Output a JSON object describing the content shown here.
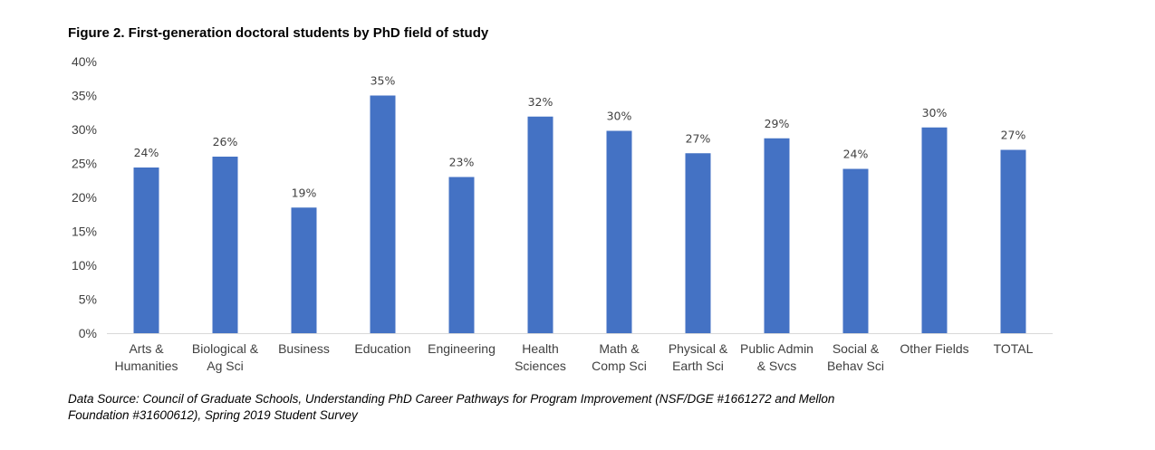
{
  "chart_data": {
    "type": "bar",
    "title": "Figure 2. First-generation doctoral students by PhD field of study",
    "categories": [
      [
        "Arts &",
        "Humanities"
      ],
      [
        "Biological &",
        "Ag Sci"
      ],
      [
        "Business"
      ],
      [
        "Education"
      ],
      [
        "Engineering"
      ],
      [
        "Health",
        "Sciences"
      ],
      [
        "Math &",
        "Comp Sci"
      ],
      [
        "Physical &",
        "Earth Sci"
      ],
      [
        "Public Admin",
        "& Svcs"
      ],
      [
        "Social &",
        "Behav Sci"
      ],
      [
        "Other Fields"
      ],
      [
        "TOTAL"
      ]
    ],
    "values": [
      24.4,
      26.0,
      18.5,
      35.0,
      23.0,
      31.9,
      29.8,
      26.5,
      28.7,
      24.2,
      30.3,
      27.0
    ],
    "data_labels": [
      "24%",
      "26%",
      "19%",
      "35%",
      "23%",
      "32%",
      "30%",
      "27%",
      "29%",
      "24%",
      "30%",
      "27%"
    ],
    "ylim": [
      0,
      40
    ],
    "yticks": [
      "0%",
      "5%",
      "10%",
      "15%",
      "20%",
      "25%",
      "30%",
      "35%",
      "40%"
    ],
    "bar_color": "#4472C4",
    "xlabel": "",
    "ylabel": "",
    "grid": false,
    "legend": "none"
  },
  "source": "Data Source: Council of Graduate Schools, Understanding PhD Career Pathways for Program Improvement (NSF/DGE #1661272 and Mellon Foundation #31600612), Spring 2019 Student Survey"
}
